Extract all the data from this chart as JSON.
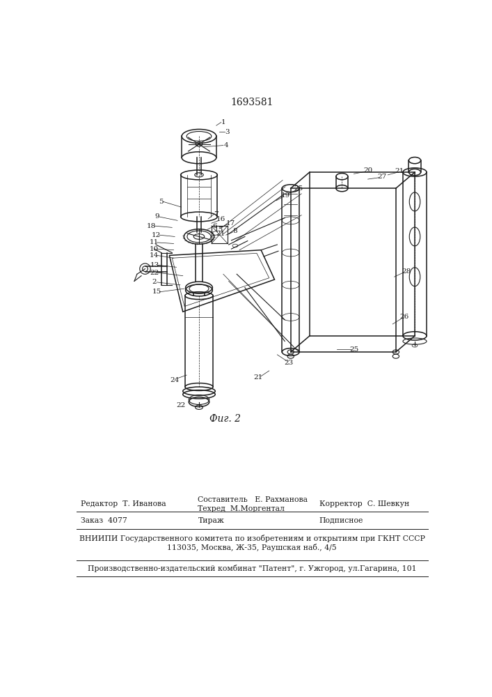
{
  "patent_number": "1693581",
  "fig_label": "Фиг. 2",
  "bg_color": "#ffffff",
  "draw_color": "#1a1a1a",
  "footer": {
    "editor": "Редактор  Т. Иванова",
    "composer": "Составитель   Е. Рахманова",
    "techred": "Техред  М.Моргентал",
    "corrector": "Корректор  С. Шевкун",
    "order": "Заказ  4077",
    "tirazh": "Тираж",
    "podpisnoe": "Подписное",
    "vniipи_line1": "ВНИИПИ Государственного комитета по изобретениям и открытиям при ГКНТ СССР",
    "vniipи_line2": "113035, Москва, Ж-35, Раушская наб., 4/5",
    "kombinat": "Производственно-издательский комбинат \"Патент\", г. Ужгород, ул.Гагарина, 101"
  }
}
